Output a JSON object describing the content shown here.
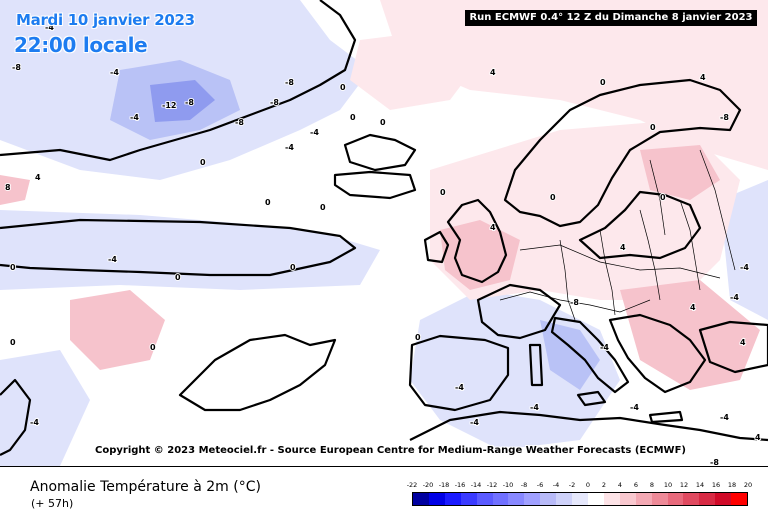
{
  "header": {
    "date": "Mardi 10 janvier 2023",
    "time": "22:00 locale",
    "run": "Run ECMWF 0.4° 12 Z du Dimanche 8 janvier 2023"
  },
  "copyright": "Copyright © 2023 Meteociel.fr - Source European Centre for Medium-Range Weather Forecasts (ECMWF)",
  "footer": {
    "variable": "Anomalie Température à 2m (°C)",
    "lead_time": "(+ 57h)"
  },
  "colors": {
    "accent": "#1d7cf0",
    "coast": "#000000",
    "warm_light": "#fde8ec",
    "warm_medium": "#f6c3cc",
    "warm_strong": "#ef9aa6",
    "cold_light": "#dfe3fb",
    "cold_medium": "#b9c2f6",
    "cold_strong": "#8f9bef"
  },
  "legend": {
    "labels": [
      "-22",
      "-20",
      "-18",
      "-16",
      "-14",
      "-12",
      "-10",
      "-8",
      "-6",
      "-4",
      "-2",
      "0",
      "2",
      "4",
      "6",
      "8",
      "10",
      "12",
      "14",
      "16",
      "18",
      "20"
    ],
    "colors": [
      "#0000a0",
      "#0000e6",
      "#1a1aff",
      "#3a3aff",
      "#5a5aff",
      "#7070ff",
      "#8888ff",
      "#a0a0ff",
      "#b8baf8",
      "#cfd2fa",
      "#e6e8fc",
      "#ffffff",
      "#fde3e7",
      "#f9c8cf",
      "#f4a9b4",
      "#ee8a98",
      "#e86a7c",
      "#e04a60",
      "#d82a44",
      "#d00a28",
      "#ff0000"
    ]
  },
  "contour_labels": [
    "-4",
    "-4",
    "-8",
    "-8",
    "-12",
    "-4",
    "-8",
    "-4",
    "-8",
    "-8",
    "-4",
    "0",
    "0",
    "0",
    "0",
    "0",
    "0",
    "0",
    "0",
    "4",
    "4",
    "4",
    "4",
    "4",
    "0",
    "0",
    "0",
    "0",
    "0",
    "-4",
    "-4",
    "-4",
    "-8",
    "-8",
    "-8",
    "-4",
    "-4",
    "-4",
    "4",
    "0",
    "0",
    "-4",
    "-4",
    "-4",
    "0",
    "0",
    "-4",
    "4",
    "4",
    "8"
  ]
}
